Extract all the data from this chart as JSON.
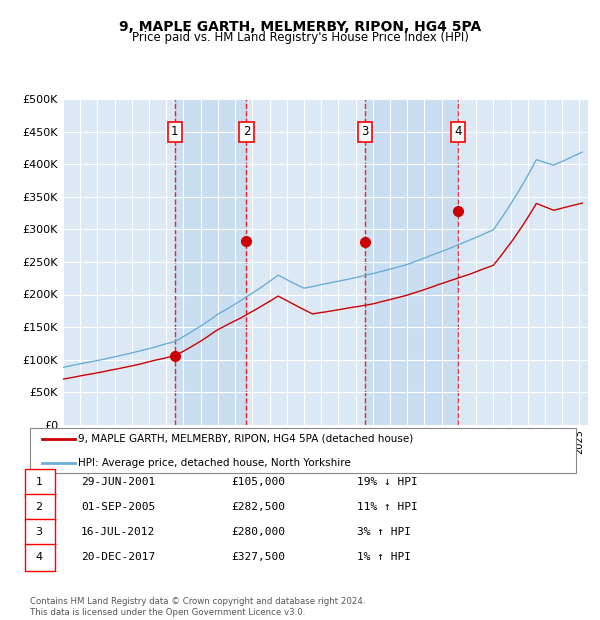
{
  "title1": "9, MAPLE GARTH, MELMERBY, RIPON, HG4 5PA",
  "title2": "Price paid vs. HM Land Registry's House Price Index (HPI)",
  "bg_color": "#dce9f5",
  "hpi_color": "#6baed6",
  "price_color": "#cc0000",
  "ylim": [
    0,
    500000
  ],
  "yticks": [
    0,
    50000,
    100000,
    150000,
    200000,
    250000,
    300000,
    350000,
    400000,
    450000,
    500000
  ],
  "transactions": [
    {
      "num": 1,
      "date": "29-JUN-2001",
      "date_decimal": 2001.49,
      "price": 105000,
      "hpi_pct": "19% ↓ HPI"
    },
    {
      "num": 2,
      "date": "01-SEP-2005",
      "date_decimal": 2005.66,
      "price": 282500,
      "hpi_pct": "11% ↑ HPI"
    },
    {
      "num": 3,
      "date": "16-JUL-2012",
      "date_decimal": 2012.54,
      "price": 280000,
      "hpi_pct": "3% ↑ HPI"
    },
    {
      "num": 4,
      "date": "20-DEC-2017",
      "date_decimal": 2017.97,
      "price": 327500,
      "hpi_pct": "1% ↑ HPI"
    }
  ],
  "legend_label_price": "9, MAPLE GARTH, MELMERBY, RIPON, HG4 5PA (detached house)",
  "legend_label_hpi": "HPI: Average price, detached house, North Yorkshire",
  "footer": "Contains HM Land Registry data © Crown copyright and database right 2024.\nThis data is licensed under the Open Government Licence v3.0.",
  "xmin": 1995.0,
  "xmax": 2025.5
}
